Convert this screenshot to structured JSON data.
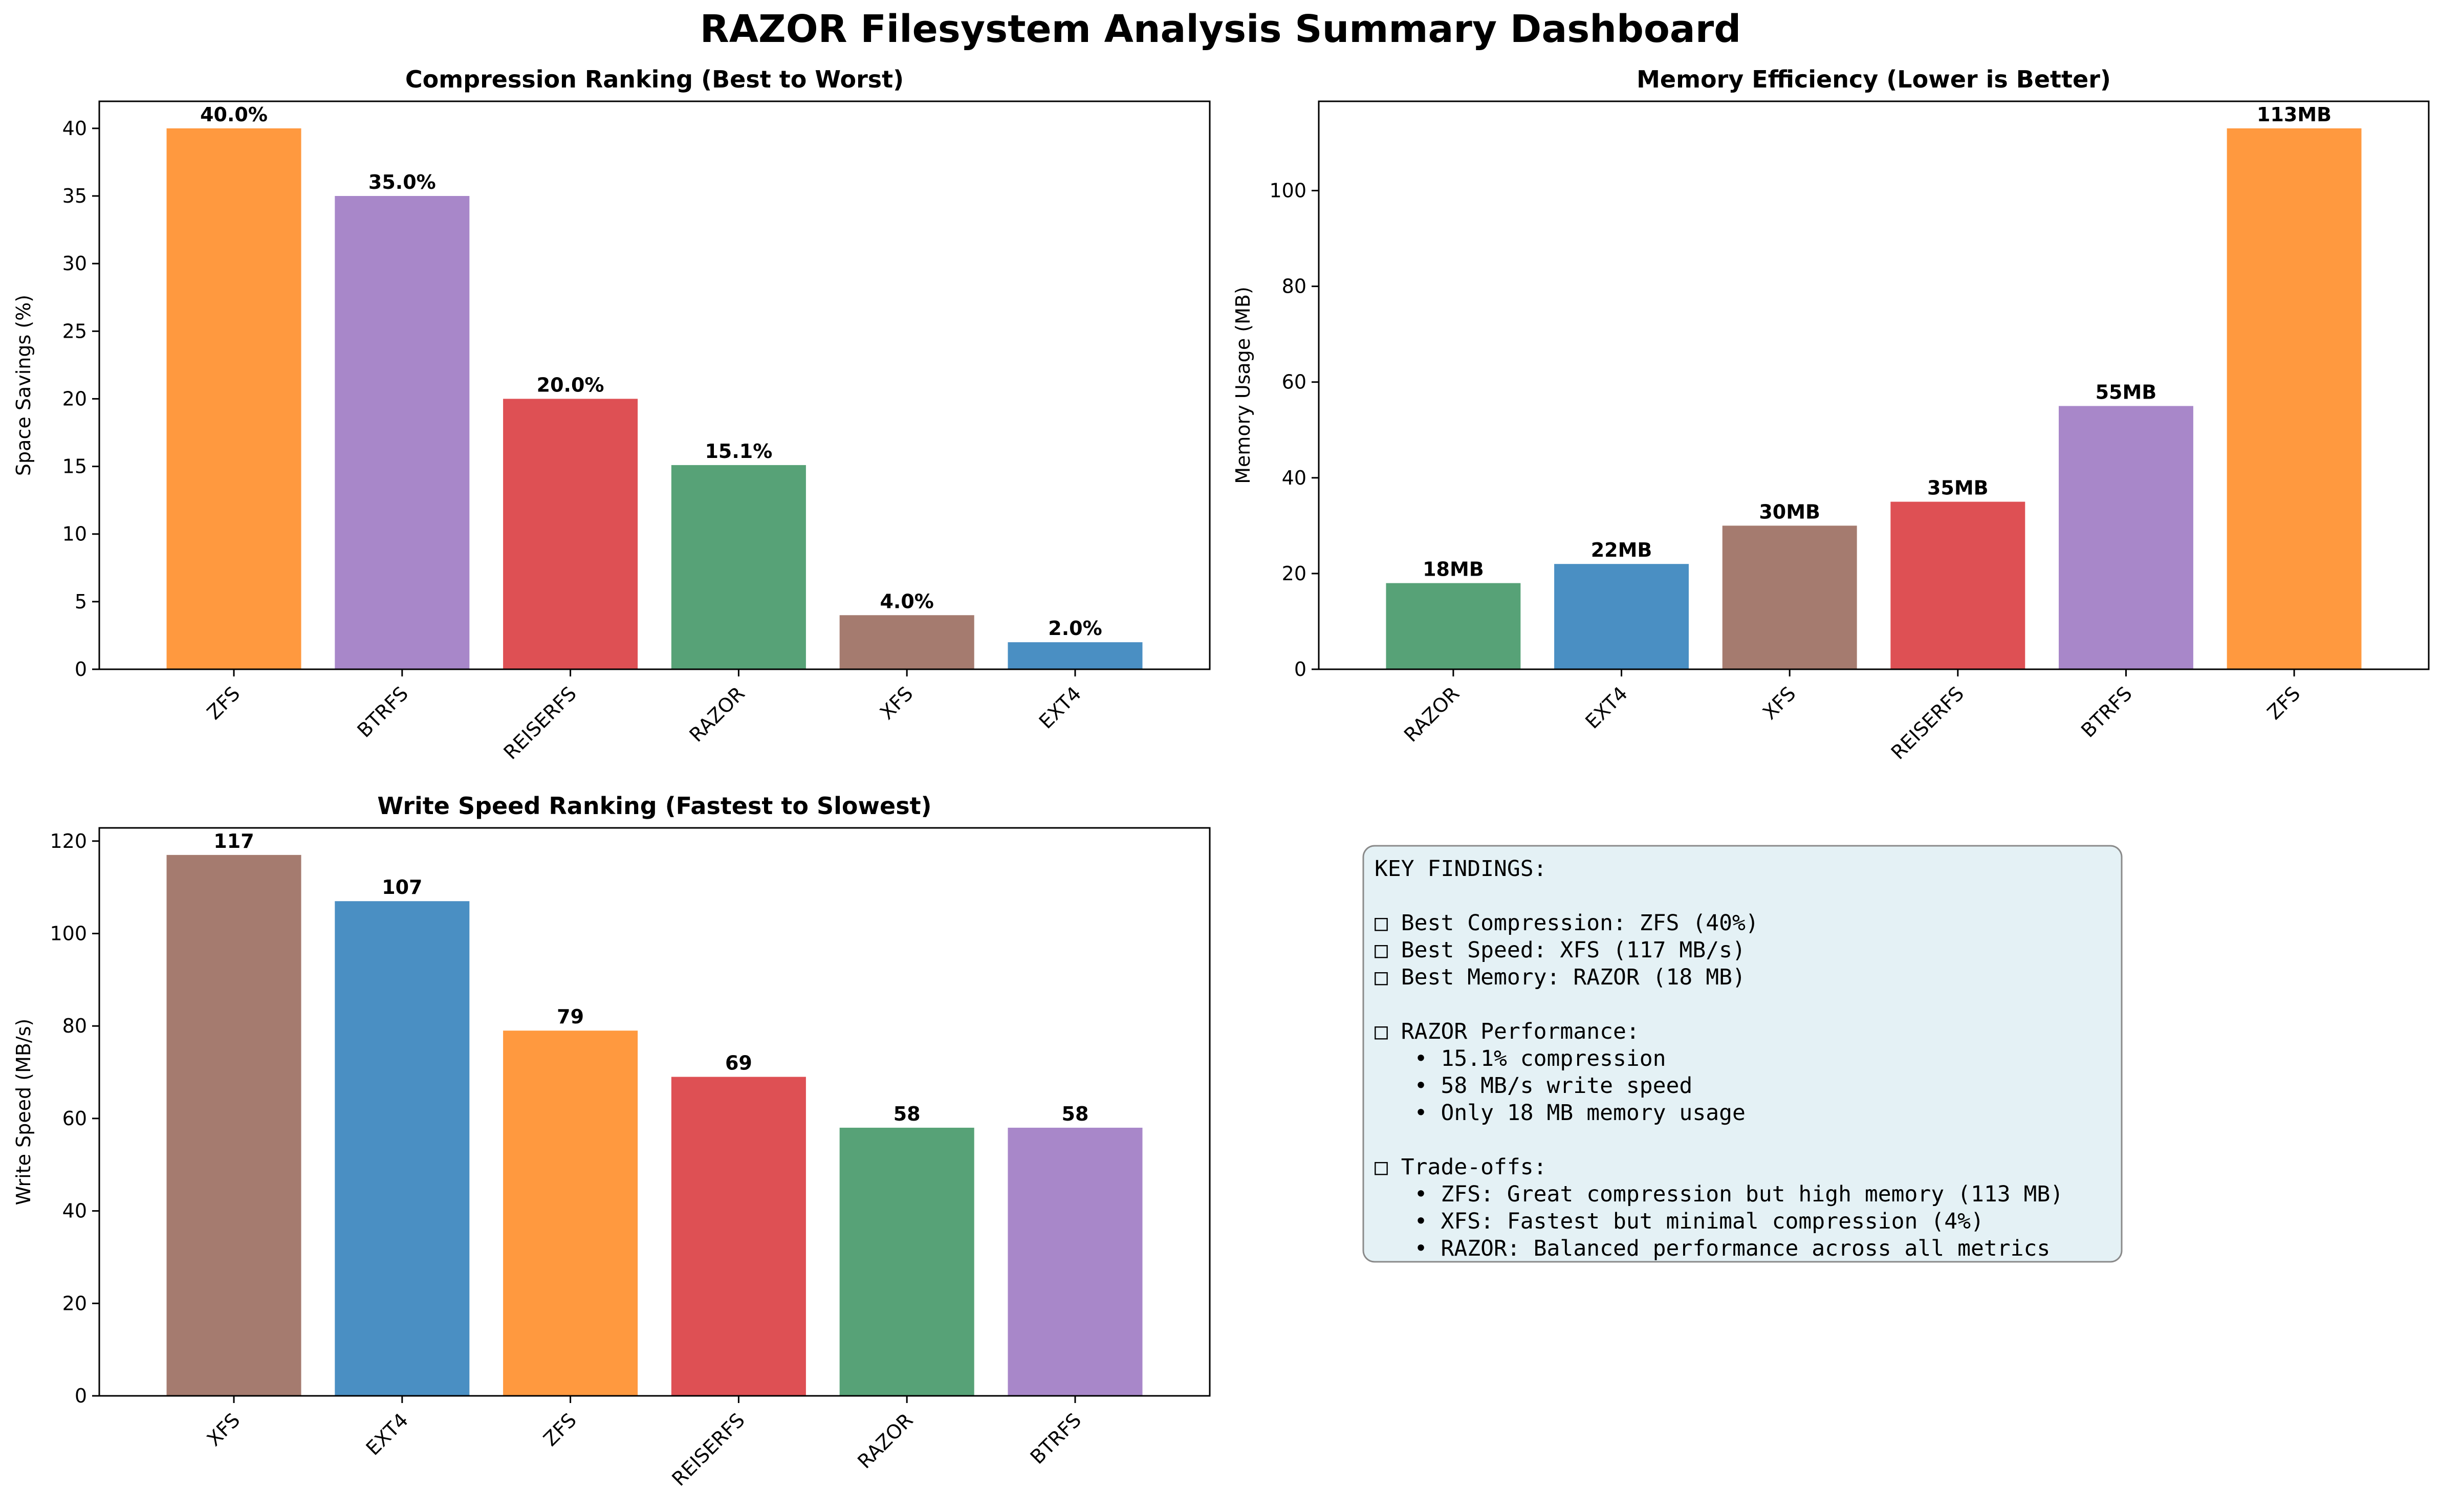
{
  "title": "RAZOR Filesystem Analysis Summary Dashboard",
  "chart_data": [
    {
      "type": "bar",
      "title": "Compression Ranking (Best to Worst)",
      "xlabel": "",
      "ylabel": "Space Savings (%)",
      "categories": [
        "ZFS",
        "BTRFS",
        "REISERFS",
        "RAZOR",
        "XFS",
        "EXT4"
      ],
      "values": [
        40.0,
        35.0,
        20.0,
        15.1,
        4.0,
        2.0
      ],
      "value_labels": [
        "40.0%",
        "35.0%",
        "20.0%",
        "15.1%",
        "4.0%",
        "2.0%"
      ],
      "colors": [
        "#ff993f",
        "#a887c9",
        "#de5054",
        "#57a277",
        "#a57b6f",
        "#4a8fc3"
      ],
      "ylim": [
        0,
        42
      ],
      "yticks": [
        0,
        5,
        10,
        15,
        20,
        25,
        30,
        35,
        40
      ],
      "grid": false
    },
    {
      "type": "bar",
      "title": "Memory Efficiency (Lower is Better)",
      "xlabel": "",
      "ylabel": "Memory Usage (MB)",
      "categories": [
        "RAZOR",
        "EXT4",
        "XFS",
        "REISERFS",
        "BTRFS",
        "ZFS"
      ],
      "values": [
        18,
        22,
        30,
        35,
        55,
        113
      ],
      "value_labels": [
        "18MB",
        "22MB",
        "30MB",
        "35MB",
        "55MB",
        "113MB"
      ],
      "colors": [
        "#57a277",
        "#4a8fc3",
        "#a57b6f",
        "#de5054",
        "#a887c9",
        "#ff993f"
      ],
      "ylim": [
        0,
        118.65
      ],
      "yticks": [
        0,
        20,
        40,
        60,
        80,
        100
      ],
      "grid": false
    },
    {
      "type": "bar",
      "title": "Write Speed Ranking (Fastest to Slowest)",
      "xlabel": "",
      "ylabel": "Write Speed (MB/s)",
      "categories": [
        "XFS",
        "EXT4",
        "ZFS",
        "REISERFS",
        "RAZOR",
        "BTRFS"
      ],
      "values": [
        117,
        107,
        79,
        69,
        58,
        58
      ],
      "value_labels": [
        "117",
        "107",
        "79",
        "69",
        "58",
        "58"
      ],
      "colors": [
        "#a57b6f",
        "#4a8fc3",
        "#ff993f",
        "#de5054",
        "#57a277",
        "#a887c9"
      ],
      "ylim": [
        0,
        122.85
      ],
      "yticks": [
        0,
        20,
        40,
        60,
        80,
        100,
        120
      ],
      "grid": false
    }
  ],
  "findings": {
    "lines": [
      "KEY FINDINGS:",
      "",
      "□ Best Compression: ZFS (40%)",
      "□ Best Speed: XFS (117 MB/s)",
      "□ Best Memory: RAZOR (18 MB)",
      "",
      "□ RAZOR Performance:",
      "   • 15.1% compression",
      "   • 58 MB/s write speed",
      "   • Only 18 MB memory usage",
      "",
      "□ Trade-offs:",
      "   • ZFS: Great compression but high memory (113 MB)",
      "   • XFS: Fastest but minimal compression (4%)",
      "   • RAZOR: Balanced performance across all metrics"
    ],
    "box_color": "#e4f1f5"
  }
}
